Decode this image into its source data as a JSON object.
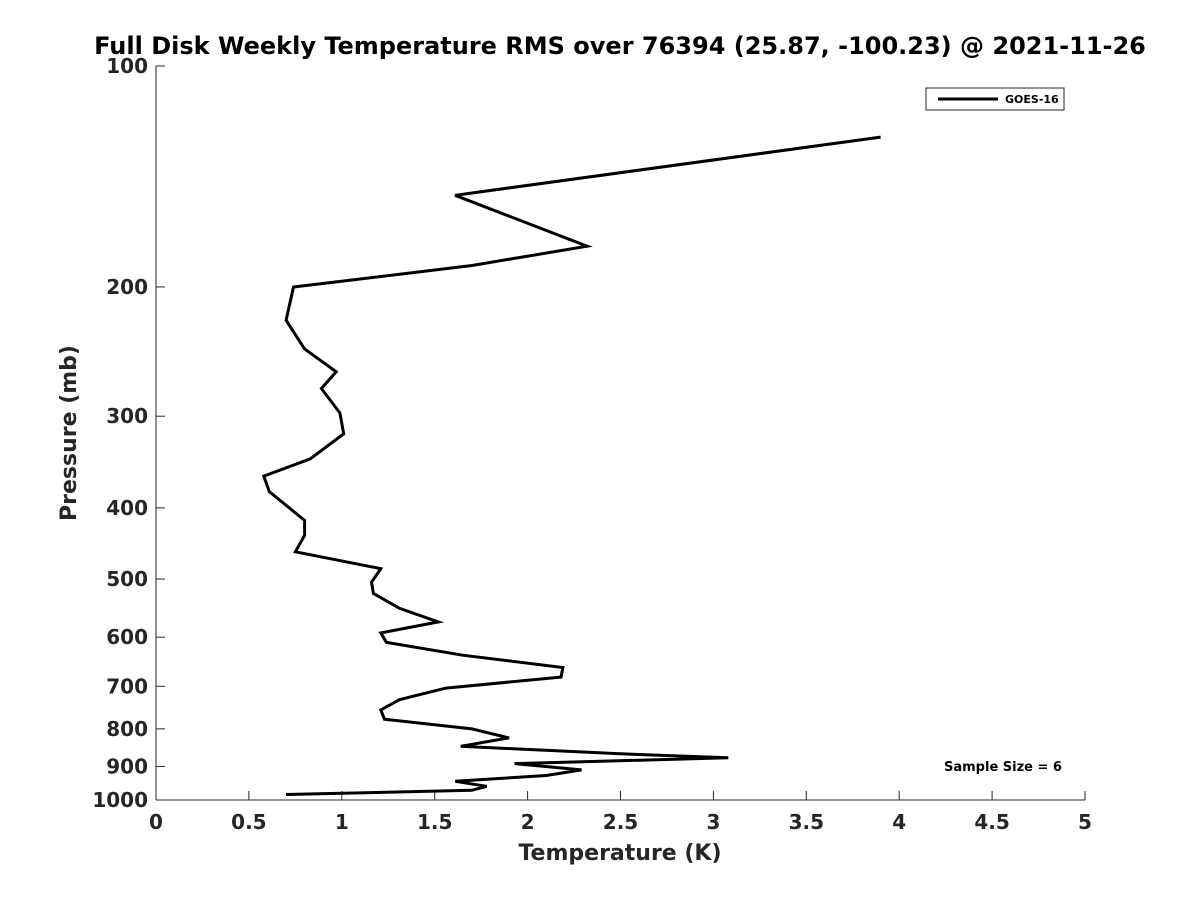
{
  "chart_data": {
    "type": "line",
    "title": "Full Disk Weekly Temperature RMS over 76394 (25.87, -100.23) @ 2021-11-26",
    "xlabel": "Temperature (K)",
    "ylabel": "Pressure (mb)",
    "xlim": [
      0,
      5
    ],
    "ylim": [
      1000,
      100
    ],
    "yscale": "log",
    "xticks": [
      0,
      0.5,
      1,
      1.5,
      2,
      2.5,
      3,
      3.5,
      4,
      4.5,
      5
    ],
    "xtick_labels": [
      "0",
      "0.5",
      "1",
      "1.5",
      "2",
      "2.5",
      "3",
      "3.5",
      "4",
      "4.5",
      "5"
    ],
    "yticks": [
      100,
      200,
      300,
      400,
      500,
      600,
      700,
      800,
      900,
      1000
    ],
    "ytick_labels": [
      "100",
      "200",
      "300",
      "400",
      "500",
      "600",
      "700",
      "800",
      "900",
      "1000"
    ],
    "grid": false,
    "legend_position": "top-right",
    "annotation": "Sample Size = 6",
    "series": [
      {
        "name": "GOES-16",
        "color": "#000000",
        "points": [
          [
            3.9,
            125
          ],
          [
            1.61,
            150
          ],
          [
            2.32,
            176
          ],
          [
            1.7,
            187
          ],
          [
            0.74,
            200
          ],
          [
            0.7,
            222
          ],
          [
            0.8,
            243
          ],
          [
            0.97,
            261
          ],
          [
            0.89,
            275
          ],
          [
            0.99,
            297
          ],
          [
            1.01,
            317
          ],
          [
            0.83,
            343
          ],
          [
            0.58,
            362
          ],
          [
            0.61,
            380
          ],
          [
            0.8,
            416
          ],
          [
            0.8,
            436
          ],
          [
            0.75,
            459
          ],
          [
            1.21,
            484
          ],
          [
            1.16,
            505
          ],
          [
            1.17,
            523
          ],
          [
            1.31,
            548
          ],
          [
            1.52,
            572
          ],
          [
            1.21,
            592
          ],
          [
            1.24,
            610
          ],
          [
            1.65,
            635
          ],
          [
            2.19,
            660
          ],
          [
            2.18,
            680
          ],
          [
            1.56,
            704
          ],
          [
            1.31,
            730
          ],
          [
            1.21,
            754
          ],
          [
            1.23,
            776
          ],
          [
            1.7,
            800
          ],
          [
            1.9,
            823
          ],
          [
            1.64,
            845
          ],
          [
            2.5,
            865
          ],
          [
            3.08,
            876
          ],
          [
            1.93,
            892
          ],
          [
            2.29,
            910
          ],
          [
            2.1,
            926
          ],
          [
            1.61,
            943
          ],
          [
            1.78,
            958
          ],
          [
            1.7,
            970
          ],
          [
            0.7,
            983
          ]
        ]
      }
    ]
  }
}
